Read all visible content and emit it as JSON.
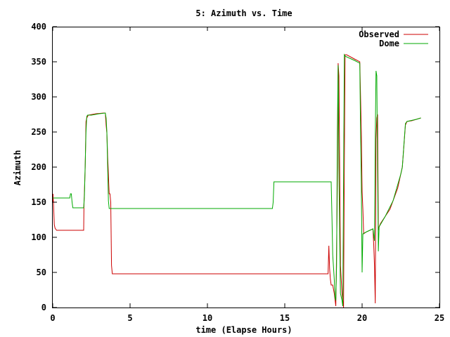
{
  "chart_data": {
    "type": "line",
    "title": "5: Azimuth vs. Time",
    "xlabel": "time (Elapse Hours)",
    "ylabel": "Azimuth",
    "xlim": [
      0,
      25
    ],
    "ylim": [
      0,
      400
    ],
    "xticks": [
      0,
      5,
      10,
      15,
      20,
      25
    ],
    "yticks": [
      0,
      50,
      100,
      150,
      200,
      250,
      300,
      350,
      400
    ],
    "legend_position": "top-right",
    "grid": false,
    "series": [
      {
        "name": "Observed",
        "color": "#cc0000",
        "points": [
          [
            0.0,
            150
          ],
          [
            0.02,
            162
          ],
          [
            0.05,
            148
          ],
          [
            0.1,
            118
          ],
          [
            0.15,
            113
          ],
          [
            0.25,
            110
          ],
          [
            1.0,
            110
          ],
          [
            2.0,
            110
          ],
          [
            2.02,
            145
          ],
          [
            2.1,
            200
          ],
          [
            2.15,
            265
          ],
          [
            2.2,
            270
          ],
          [
            2.3,
            274
          ],
          [
            2.8,
            276
          ],
          [
            3.3,
            277
          ],
          [
            3.4,
            277
          ],
          [
            3.45,
            260
          ],
          [
            3.5,
            248
          ],
          [
            3.55,
            215
          ],
          [
            3.6,
            190
          ],
          [
            3.62,
            178
          ],
          [
            3.65,
            162
          ],
          [
            3.7,
            162
          ],
          [
            3.75,
            150
          ],
          [
            3.8,
            60
          ],
          [
            3.85,
            48
          ],
          [
            5.0,
            48
          ],
          [
            10.0,
            48
          ],
          [
            15.0,
            48
          ],
          [
            17.7,
            48
          ],
          [
            17.8,
            48
          ],
          [
            17.85,
            88
          ],
          [
            17.9,
            55
          ],
          [
            17.95,
            40
          ],
          [
            18.0,
            32
          ],
          [
            18.1,
            32
          ],
          [
            18.2,
            20
          ],
          [
            18.3,
            2
          ],
          [
            18.35,
            80
          ],
          [
            18.4,
            175
          ],
          [
            18.45,
            348
          ],
          [
            18.5,
            330
          ],
          [
            18.55,
            200
          ],
          [
            18.6,
            60
          ],
          [
            18.65,
            40
          ],
          [
            18.7,
            20
          ],
          [
            18.8,
            0
          ],
          [
            18.85,
            200
          ],
          [
            18.9,
            360
          ],
          [
            19.0,
            360
          ],
          [
            19.5,
            354
          ],
          [
            19.85,
            350
          ],
          [
            19.9,
            300
          ],
          [
            19.95,
            250
          ],
          [
            20.0,
            165
          ],
          [
            20.05,
            140
          ],
          [
            20.1,
            105
          ],
          [
            20.3,
            108
          ],
          [
            20.7,
            112
          ],
          [
            20.75,
            90
          ],
          [
            20.8,
            60
          ],
          [
            20.85,
            6
          ],
          [
            20.9,
            240
          ],
          [
            20.95,
            270
          ],
          [
            21.0,
            275
          ],
          [
            21.05,
            110
          ],
          [
            21.1,
            115
          ],
          [
            21.2,
            120
          ],
          [
            21.5,
            130
          ],
          [
            21.8,
            140
          ],
          [
            22.0,
            152
          ],
          [
            22.3,
            170
          ],
          [
            22.5,
            190
          ],
          [
            22.6,
            200
          ],
          [
            22.8,
            260
          ],
          [
            22.9,
            265
          ],
          [
            23.2,
            266
          ],
          [
            23.5,
            268
          ],
          [
            23.8,
            270
          ]
        ]
      },
      {
        "name": "Dome",
        "color": "#00aa00",
        "points": [
          [
            0.0,
            156
          ],
          [
            0.05,
            156
          ],
          [
            1.0,
            156
          ],
          [
            1.1,
            156
          ],
          [
            1.15,
            162
          ],
          [
            1.2,
            162
          ],
          [
            1.25,
            150
          ],
          [
            1.3,
            142
          ],
          [
            2.0,
            142
          ],
          [
            2.05,
            160
          ],
          [
            2.15,
            250
          ],
          [
            2.2,
            272
          ],
          [
            2.25,
            274
          ],
          [
            2.5,
            274
          ],
          [
            3.0,
            276
          ],
          [
            3.4,
            277
          ],
          [
            3.45,
            270
          ],
          [
            3.5,
            250
          ],
          [
            3.55,
            200
          ],
          [
            3.6,
            152
          ],
          [
            3.65,
            141
          ],
          [
            5.0,
            141
          ],
          [
            10.0,
            141
          ],
          [
            14.2,
            141
          ],
          [
            14.25,
            150
          ],
          [
            14.3,
            179
          ],
          [
            15.0,
            179
          ],
          [
            17.0,
            179
          ],
          [
            18.0,
            179
          ],
          [
            18.05,
            130
          ],
          [
            18.1,
            75
          ],
          [
            18.2,
            40
          ],
          [
            18.25,
            15
          ],
          [
            18.3,
            10
          ],
          [
            18.35,
            60
          ],
          [
            18.4,
            250
          ],
          [
            18.45,
            345
          ],
          [
            18.5,
            200
          ],
          [
            18.55,
            100
          ],
          [
            18.6,
            20
          ],
          [
            18.7,
            10
          ],
          [
            18.75,
            2
          ],
          [
            18.8,
            180
          ],
          [
            18.85,
            360
          ],
          [
            18.9,
            358
          ],
          [
            19.5,
            352
          ],
          [
            19.85,
            348
          ],
          [
            19.9,
            250
          ],
          [
            19.95,
            175
          ],
          [
            20.0,
            50
          ],
          [
            20.05,
            105
          ],
          [
            20.3,
            108
          ],
          [
            20.7,
            112
          ],
          [
            20.8,
            95
          ],
          [
            20.85,
            240
          ],
          [
            20.9,
            337
          ],
          [
            20.95,
            330
          ],
          [
            21.0,
            200
          ],
          [
            21.05,
            80
          ],
          [
            21.1,
            115
          ],
          [
            21.5,
            130
          ],
          [
            22.0,
            152
          ],
          [
            22.5,
            190
          ],
          [
            22.6,
            200
          ],
          [
            22.8,
            262
          ],
          [
            22.9,
            265
          ],
          [
            23.5,
            268
          ],
          [
            23.8,
            270
          ]
        ]
      }
    ]
  }
}
